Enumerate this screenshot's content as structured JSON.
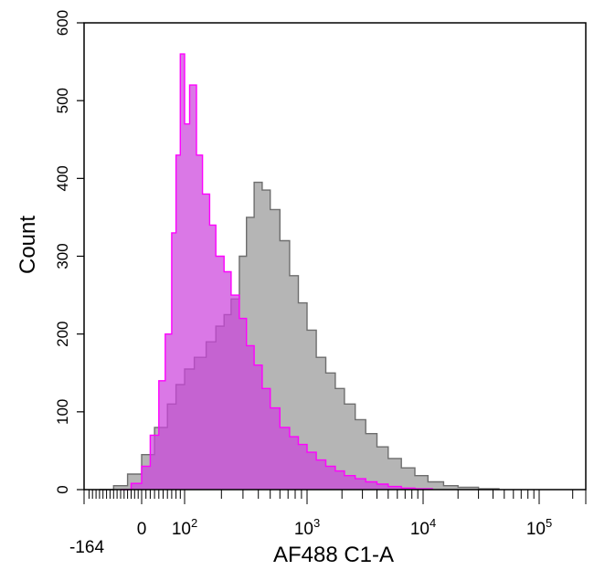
{
  "chart_data": {
    "type": "area",
    "title": "",
    "xlabel": "AF488 C1-A",
    "ylabel": "Count",
    "x_scale": "biexponential",
    "xlim": [
      -164,
      262144
    ],
    "ylim": [
      0,
      600
    ],
    "grid": false,
    "legend": "none",
    "yticks": [
      {
        "value": 0,
        "label": "0"
      },
      {
        "value": 100,
        "label": "100"
      },
      {
        "value": 200,
        "label": "200"
      },
      {
        "value": 300,
        "label": "300"
      },
      {
        "value": 400,
        "label": "400"
      },
      {
        "value": 500,
        "label": "500"
      },
      {
        "value": 600,
        "label": "600"
      }
    ],
    "xticks": [
      {
        "value": -164,
        "base": "-164",
        "exp": ""
      },
      {
        "value": 0,
        "base": "0",
        "exp": ""
      },
      {
        "value": 100,
        "base": "10",
        "exp": "2"
      },
      {
        "value": 1000,
        "base": "10",
        "exp": "3"
      },
      {
        "value": 10000,
        "base": "10",
        "exp": "4"
      },
      {
        "value": 100000,
        "base": "10",
        "exp": "5"
      }
    ],
    "series": [
      {
        "color_fill": "#b5b5b5",
        "color_line": "#6e6e6e",
        "x": [
          -120,
          -80,
          -40,
          0,
          30,
          60,
          80,
          100,
          120,
          150,
          180,
          210,
          240,
          280,
          320,
          370,
          430,
          500,
          600,
          720,
          850,
          1000,
          1200,
          1450,
          1750,
          2100,
          2600,
          3200,
          4000,
          5000,
          6500,
          8500,
          11000,
          15000,
          20000,
          30000,
          45000
        ],
        "y": [
          0,
          5,
          20,
          45,
          80,
          110,
          135,
          155,
          170,
          190,
          210,
          225,
          245,
          300,
          350,
          395,
          385,
          360,
          320,
          275,
          240,
          205,
          170,
          150,
          130,
          110,
          90,
          72,
          55,
          40,
          28,
          18,
          10,
          5,
          3,
          1,
          0
        ]
      },
      {
        "color_fill": "#cc44dd",
        "color_line": "#ff00ff",
        "x": [
          -60,
          -30,
          0,
          20,
          40,
          55,
          70,
          80,
          90,
          100,
          110,
          125,
          140,
          160,
          180,
          210,
          240,
          280,
          320,
          370,
          430,
          500,
          600,
          720,
          850,
          1000,
          1200,
          1450,
          1750,
          2100,
          2600,
          3200,
          4000,
          5000,
          6500,
          8500,
          12000
        ],
        "y": [
          0,
          8,
          30,
          70,
          140,
          200,
          330,
          430,
          560,
          470,
          520,
          430,
          380,
          340,
          300,
          280,
          250,
          220,
          185,
          160,
          130,
          105,
          80,
          68,
          58,
          48,
          38,
          30,
          24,
          18,
          14,
          10,
          7,
          4,
          2,
          1,
          0
        ]
      }
    ]
  }
}
